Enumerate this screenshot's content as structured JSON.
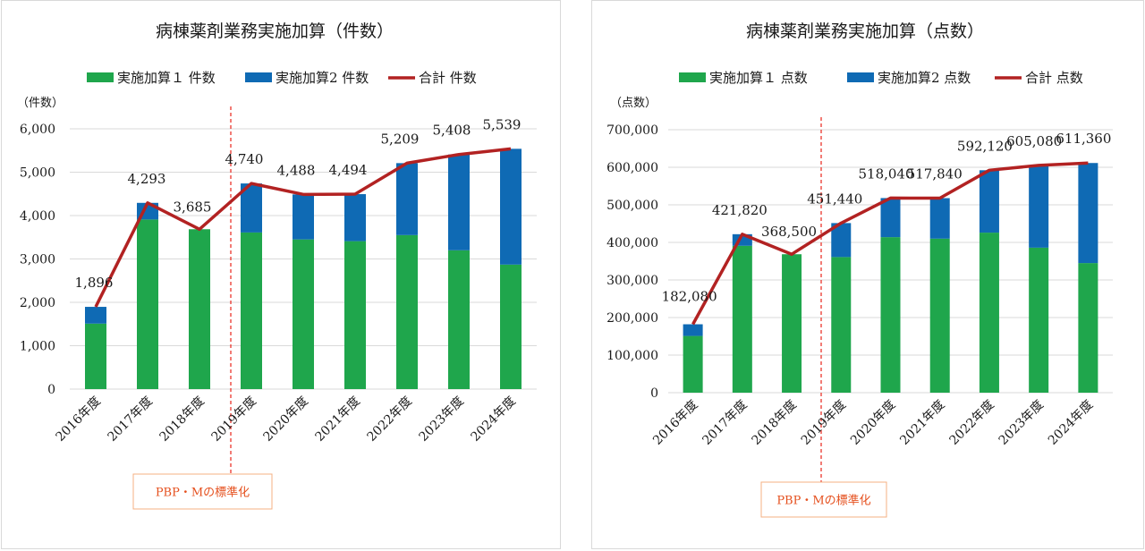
{
  "colors": {
    "series1": "#1fa64c",
    "series2": "#0f6ab4",
    "total": "#b22222",
    "marker": "#e8241a"
  },
  "chart_data": [
    {
      "type": "bar",
      "stacked": true,
      "title": "病棟薬剤業務実施加算（件数）",
      "unit_label": "（件数）",
      "categories": [
        "2016年度",
        "2017年度",
        "2018年度",
        "2019年度",
        "2020年度",
        "2021年度",
        "2022年度",
        "2023年度",
        "2024年度"
      ],
      "series": [
        {
          "name": "実施加算１ 件数",
          "type": "bar",
          "values": [
            1510,
            3910,
            3685,
            3610,
            3450,
            3410,
            3550,
            3200,
            2870
          ]
        },
        {
          "name": "実施加算2 件数",
          "type": "bar",
          "values": [
            386,
            383,
            0,
            1130,
            1038,
            1084,
            1659,
            2208,
            2669
          ]
        },
        {
          "name": "合計 件数",
          "type": "line",
          "values": [
            1896,
            4293,
            3685,
            4740,
            4488,
            4494,
            5209,
            5408,
            5539
          ]
        }
      ],
      "total_labels": [
        "1,896",
        "4,293",
        "3,685",
        "4,740",
        "4,488",
        "4,494",
        "5,209",
        "5,408",
        "5,539"
      ],
      "yticks": [
        "0",
        "1,000",
        "2,000",
        "3,000",
        "4,000",
        "5,000",
        "6,000"
      ],
      "ylim": [
        0,
        6000
      ],
      "grid": true,
      "legend_position": "top",
      "annotation": {
        "text": "PBP・Mの標準化",
        "between": [
          "2018年度",
          "2019年度"
        ]
      }
    },
    {
      "type": "bar",
      "stacked": true,
      "title": "病棟薬剤業務実施加算（点数）",
      "unit_label": "（点数）",
      "categories": [
        "2016年度",
        "2017年度",
        "2018年度",
        "2019年度",
        "2020年度",
        "2021年度",
        "2022年度",
        "2023年度",
        "2024年度"
      ],
      "series": [
        {
          "name": "実施加算１ 点数",
          "type": "bar",
          "values": [
            151000,
            391000,
            368500,
            361000,
            414000,
            410000,
            426000,
            386000,
            345000
          ]
        },
        {
          "name": "実施加算2 点数",
          "type": "bar",
          "values": [
            31080,
            30820,
            0,
            90440,
            104040,
            107840,
            166120,
            219080,
            266360
          ]
        },
        {
          "name": "合計 点数",
          "type": "line",
          "values": [
            182080,
            421820,
            368500,
            451440,
            518040,
            517840,
            592120,
            605080,
            611360
          ]
        }
      ],
      "total_labels": [
        "182,080",
        "421,820",
        "368,500",
        "451,440",
        "518,040",
        "517,840",
        "592,120",
        "605,080",
        "611,360"
      ],
      "yticks": [
        "0",
        "100,000",
        "200,000",
        "300,000",
        "400,000",
        "500,000",
        "600,000",
        "700,000"
      ],
      "ylim": [
        0,
        700000
      ],
      "grid": true,
      "legend_position": "top",
      "annotation": {
        "text": "PBP・Mの標準化",
        "between": [
          "2018年度",
          "2019年度"
        ]
      }
    }
  ]
}
